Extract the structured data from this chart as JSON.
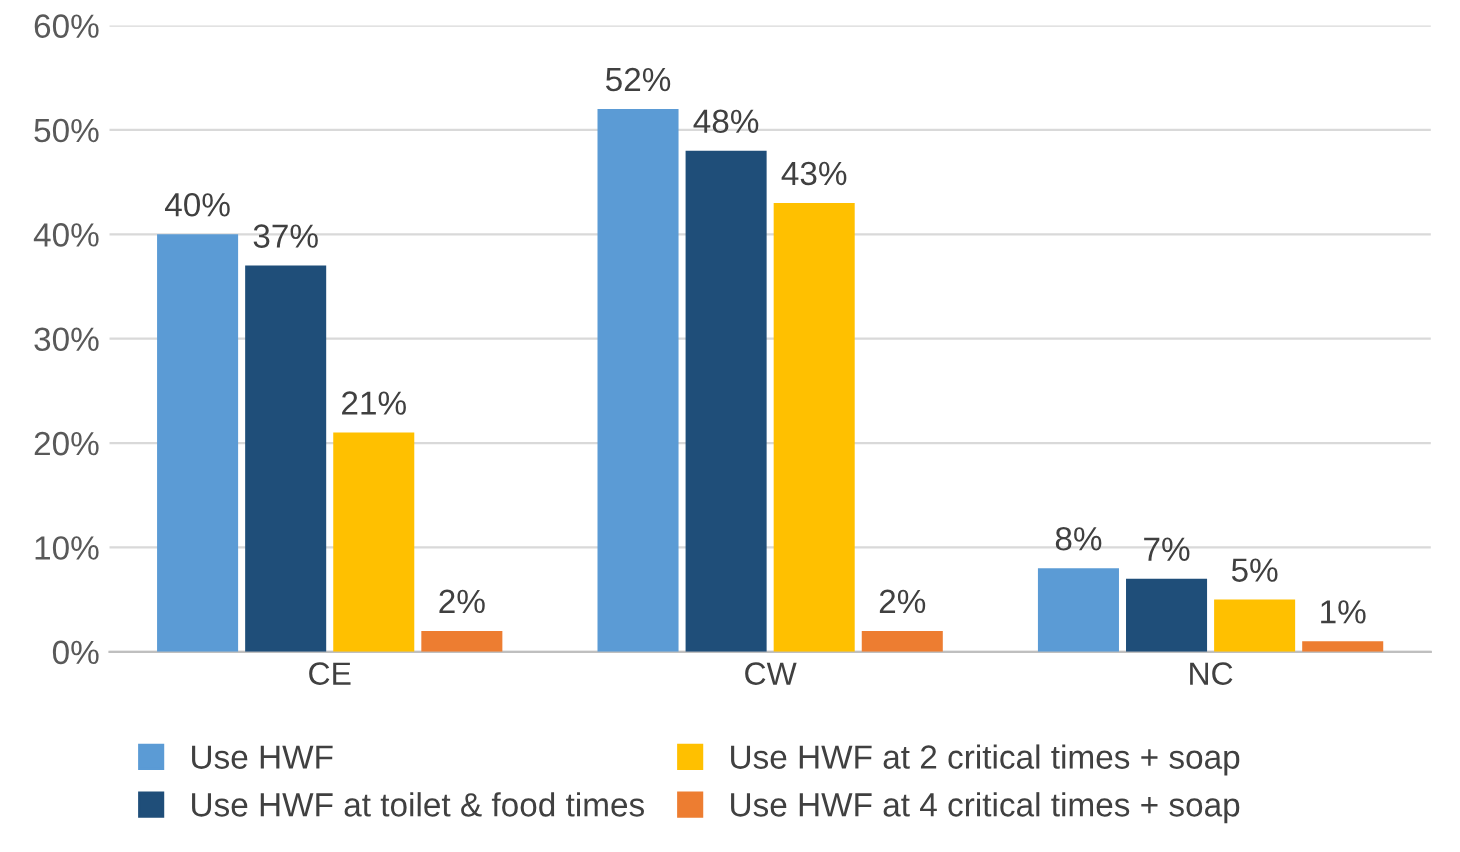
{
  "chart_data": {
    "type": "bar",
    "categories": [
      "CE",
      "CW",
      "NC"
    ],
    "series": [
      {
        "name": "Use HWF",
        "color": "#5b9bd5",
        "values": [
          40,
          52,
          8
        ],
        "value_labels": [
          "40%",
          "52%",
          "8%"
        ]
      },
      {
        "name": "Use HWF at toilet & food times",
        "color": "#1f4e79",
        "values": [
          37,
          48,
          7
        ],
        "value_labels": [
          "37%",
          "48%",
          "7%"
        ]
      },
      {
        "name": "Use HWF at 2 critical times + soap",
        "color": "#ffc000",
        "values": [
          21,
          43,
          5
        ],
        "value_labels": [
          "21%",
          "43%",
          "5%"
        ]
      },
      {
        "name": "Use HWF at 4 critical times + soap",
        "color": "#ed7d31",
        "values": [
          2,
          2,
          1
        ],
        "value_labels": [
          "2%",
          "2%",
          "1%"
        ]
      }
    ],
    "ylim": [
      0,
      60
    ],
    "yticks": [
      {
        "value": 0,
        "label": "0%"
      },
      {
        "value": 10,
        "label": "10%"
      },
      {
        "value": 20,
        "label": "20%"
      },
      {
        "value": 30,
        "label": "30%"
      },
      {
        "value": 40,
        "label": "40%"
      },
      {
        "value": 50,
        "label": "50%"
      },
      {
        "value": 60,
        "label": "60%"
      }
    ],
    "grid": "y",
    "legend": "bottom"
  }
}
